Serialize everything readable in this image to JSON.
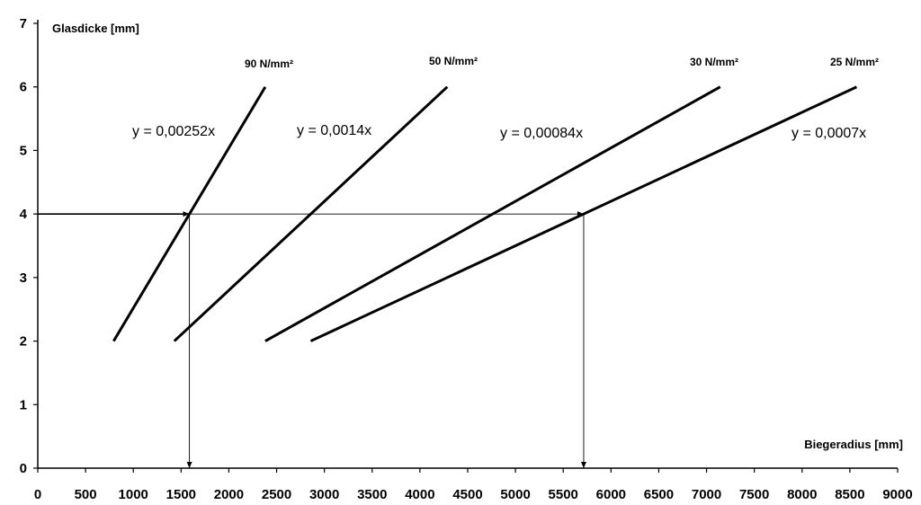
{
  "chart_data": {
    "type": "line",
    "xlabel": "Biegeradius [mm]",
    "ylabel": "Glasdicke [mm]",
    "xlim": [
      0,
      9000
    ],
    "ylim": [
      0,
      7
    ],
    "xticks": [
      "0",
      "500",
      "1000",
      "1500",
      "2000",
      "2500",
      "3000",
      "3500",
      "4000",
      "4500",
      "5000",
      "5500",
      "6000",
      "6500",
      "7000",
      "7500",
      "8000",
      "8500",
      "9000"
    ],
    "yticks": [
      "0",
      "1",
      "2",
      "3",
      "4",
      "5",
      "6",
      "7"
    ],
    "grid": false,
    "series": [
      {
        "name": "90 N/mm²",
        "equation": "y = 0,00252x",
        "x": [
          794,
          2381
        ],
        "y": [
          2,
          6
        ]
      },
      {
        "name": "50 N/mm²",
        "equation": "y = 0,0014x",
        "x": [
          1429,
          4286
        ],
        "y": [
          2,
          6
        ]
      },
      {
        "name": "30 N/mm²",
        "equation": "y = 0,00084x",
        "x": [
          2381,
          7143
        ],
        "y": [
          2,
          6
        ]
      },
      {
        "name": "25 N/mm²",
        "equation": "y = 0,0007x",
        "x": [
          2857,
          8571
        ],
        "y": [
          2,
          6
        ]
      }
    ],
    "reference_arrows": [
      {
        "from": [
          0,
          4
        ],
        "to": [
          1587,
          4
        ]
      },
      {
        "from": [
          1587,
          4
        ],
        "to": [
          5714,
          4
        ]
      },
      {
        "from": [
          1587,
          4
        ],
        "to": [
          1587,
          0
        ]
      },
      {
        "from": [
          5714,
          4
        ],
        "to": [
          5714,
          0
        ]
      }
    ]
  }
}
